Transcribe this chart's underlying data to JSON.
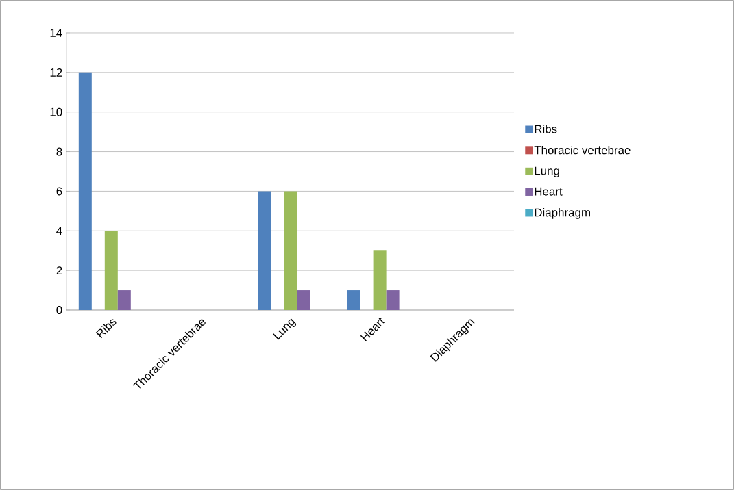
{
  "chart_data": {
    "type": "bar",
    "categories": [
      "Ribs",
      "Thoracic vertebrae",
      "Lung",
      "Heart",
      "Diaphragm"
    ],
    "series": [
      {
        "name": "Ribs",
        "color": "#4f81bd",
        "values": [
          12,
          0,
          6,
          1,
          0
        ]
      },
      {
        "name": "Thoracic vertebrae",
        "color": "#c0504d",
        "values": [
          0,
          0,
          0,
          0,
          0
        ]
      },
      {
        "name": "Lung",
        "color": "#9bbb59",
        "values": [
          4,
          0,
          6,
          3,
          0
        ]
      },
      {
        "name": "Heart",
        "color": "#8064a2",
        "values": [
          1,
          0,
          1,
          1,
          0
        ]
      },
      {
        "name": "Diaphragm",
        "color": "#4bacc6",
        "values": [
          0,
          0,
          0,
          0,
          0
        ]
      }
    ],
    "ylim": [
      0,
      14
    ],
    "yticks": [
      0,
      2,
      4,
      6,
      8,
      10,
      12,
      14
    ],
    "grid": "y",
    "legend": "right"
  }
}
